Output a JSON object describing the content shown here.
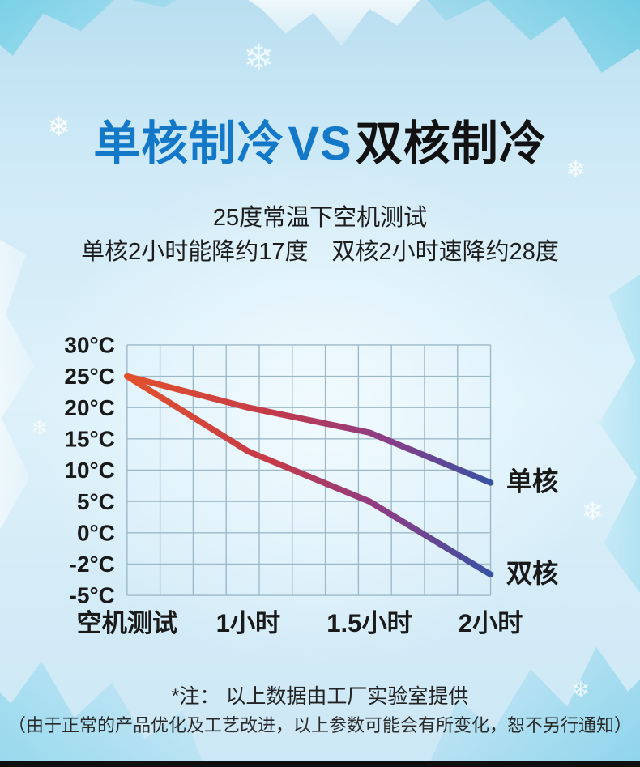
{
  "header": {
    "title_left": "单核制冷",
    "title_vs": "VS",
    "title_right": "双核制冷",
    "subtitle_line1": "25度常温下空机测试",
    "subtitle_line2": "单核2小时能降约17度　双核2小时速降约28度"
  },
  "footer": {
    "note1": "*注： 以上数据由工厂实验室提供",
    "note2": "（由于正常的产品优化及工艺改进，以上参数可能会有所变化，恕不另行通知）"
  },
  "colors": {
    "title_blue": "#1478c8",
    "title_dark": "#121212",
    "grid_line": "#9db9c9",
    "axis_text": "#1a1a1a",
    "line_gradient_stops": [
      "#e2512c",
      "#c43a49",
      "#8a3d87",
      "#2b55a7"
    ],
    "background_light": "#d9eef9"
  },
  "chart_data": {
    "type": "line",
    "title": "25度常温下空机测试",
    "xlabel": "",
    "ylabel": "",
    "grid": true,
    "legend_position": "line-end",
    "categories": [
      "空机测试",
      "1小时",
      "1.5小时",
      "2小时"
    ],
    "y_ticks": [
      "30°C",
      "25°C",
      "20°C",
      "15°C",
      "10°C",
      "5°C",
      "0°C",
      "-2°C",
      "-5°C"
    ],
    "y_tick_values": [
      30,
      25,
      20,
      15,
      10,
      5,
      0,
      -2,
      -5
    ],
    "series": [
      {
        "name": "单核",
        "values": [
          25,
          20,
          16,
          8
        ]
      },
      {
        "name": "双核",
        "values": [
          25,
          13,
          5,
          -3
        ]
      }
    ]
  }
}
